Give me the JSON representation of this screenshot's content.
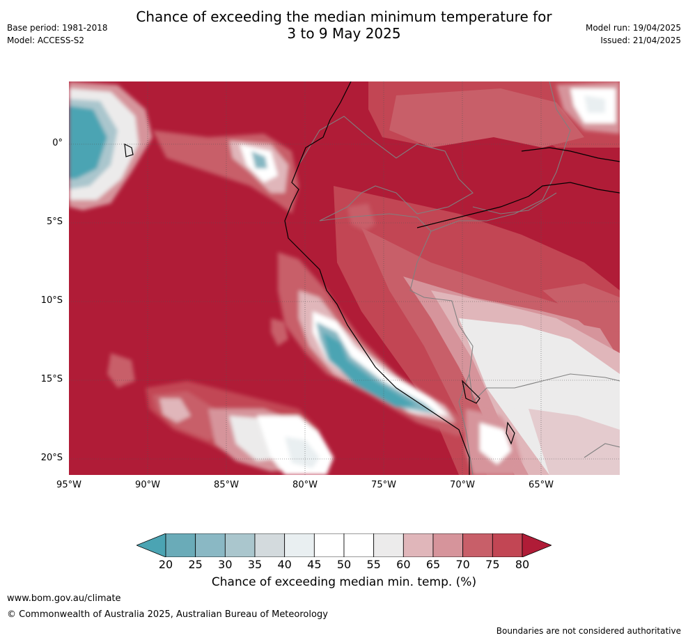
{
  "title": {
    "line1": "Chance of exceeding the median minimum temperature for",
    "line2": "3 to 9 May 2025"
  },
  "meta_left": {
    "base_period": "Base period: 1981-2018",
    "model": "Model: ACCESS-S2"
  },
  "meta_right": {
    "model_run": "Model run: 19/04/2025",
    "issued": "Issued: 21/04/2025"
  },
  "map": {
    "lat_labels": [
      "0°",
      "5°S",
      "10°S",
      "15°S",
      "20°S"
    ],
    "lon_labels": [
      "95°W",
      "90°W",
      "85°W",
      "80°W",
      "75°W",
      "70°W",
      "65°W"
    ],
    "dominant_category": "80",
    "colors": {
      "c80": "#b01c37",
      "c75": "#c24654",
      "c70": "#c85f69",
      "c65": "#d6949b",
      "c60": "#e0b6ba",
      "c55": "#ecebeb",
      "c50": "#ffffff",
      "c45": "#e8eef0",
      "c40": "#ccd6da",
      "c35": "#a9c6cd",
      "c30": "#86b7c2",
      "c20": "#4ba4b3",
      "coast": "#000000",
      "border": "#808080"
    }
  },
  "colorbar": {
    "ticks": [
      "20",
      "25",
      "30",
      "35",
      "40",
      "45",
      "50",
      "55",
      "60",
      "65",
      "70",
      "75",
      "80"
    ],
    "colors": [
      "#4ba4b3",
      "#6aabb8",
      "#8ab8c4",
      "#aac6cd",
      "#d3dadd",
      "#e9eff1",
      "#ffffff",
      "#ffffff",
      "#ecebeb",
      "#e0b6ba",
      "#d6949b",
      "#c85f69",
      "#c24654",
      "#b01c37"
    ],
    "label": "Chance of exceeding median min. temp. (%)"
  },
  "footer": {
    "url": "www.bom.gov.au/climate",
    "copyright": "© Commonwealth of Australia 2025, Australian Bureau of Meteorology",
    "note": "Boundaries are not considered authoritative"
  }
}
